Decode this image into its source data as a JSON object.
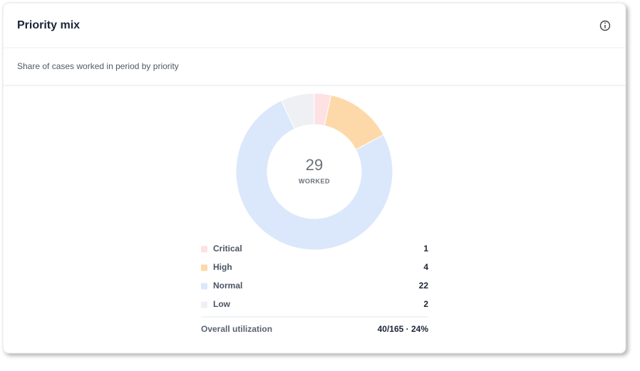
{
  "header": {
    "title": "Priority mix"
  },
  "subtitle": "Share of cases worked in period by priority",
  "chart_data": {
    "type": "donut",
    "categories": [
      "Critical",
      "High",
      "Normal",
      "Low"
    ],
    "values": [
      1,
      4,
      22,
      2
    ],
    "colors": [
      "#fde1e3",
      "#fdd9aa",
      "#dbe8fb",
      "#eff0f3"
    ],
    "center_value": 29,
    "center_label": "WORKED"
  },
  "footer": {
    "label": "Overall utilization",
    "value": "40/165 · 24%"
  }
}
